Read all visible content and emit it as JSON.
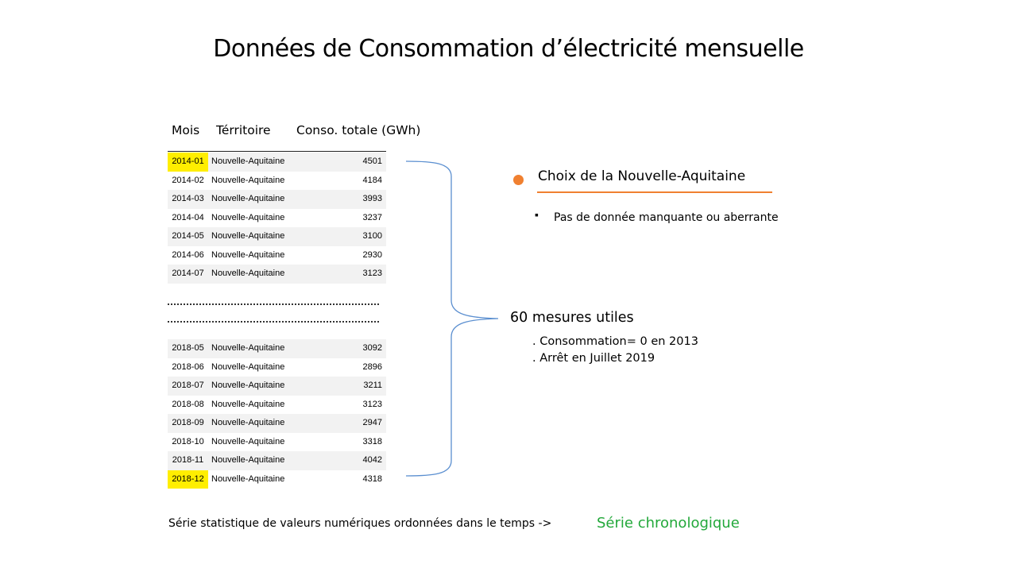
{
  "title": "Données de Consommation d’électricité mensuelle",
  "table": {
    "headers": {
      "mois": "Mois",
      "territoire": "Térritoire",
      "conso": "Conso. totale (GWh)"
    },
    "rows_top": [
      {
        "mois": "2014-01",
        "territoire": "Nouvelle-Aquitaine",
        "conso": "4501",
        "highlight": true
      },
      {
        "mois": "2014-02",
        "territoire": "Nouvelle-Aquitaine",
        "conso": "4184",
        "highlight": false
      },
      {
        "mois": "2014-03",
        "territoire": "Nouvelle-Aquitaine",
        "conso": "3993",
        "highlight": false
      },
      {
        "mois": "2014-04",
        "territoire": "Nouvelle-Aquitaine",
        "conso": "3237",
        "highlight": false
      },
      {
        "mois": "2014-05",
        "territoire": "Nouvelle-Aquitaine",
        "conso": "3100",
        "highlight": false
      },
      {
        "mois": "2014-06",
        "territoire": "Nouvelle-Aquitaine",
        "conso": "2930",
        "highlight": false
      },
      {
        "mois": "2014-07",
        "territoire": "Nouvelle-Aquitaine",
        "conso": "3123",
        "highlight": false
      }
    ],
    "rows_bottom": [
      {
        "mois": "2018-05",
        "territoire": "Nouvelle-Aquitaine",
        "conso": "3092",
        "highlight": false
      },
      {
        "mois": "2018-06",
        "territoire": "Nouvelle-Aquitaine",
        "conso": "2896",
        "highlight": false
      },
      {
        "mois": "2018-07",
        "territoire": "Nouvelle-Aquitaine",
        "conso": "3211",
        "highlight": false
      },
      {
        "mois": "2018-08",
        "territoire": "Nouvelle-Aquitaine",
        "conso": "3123",
        "highlight": false
      },
      {
        "mois": "2018-09",
        "territoire": "Nouvelle-Aquitaine",
        "conso": "2947",
        "highlight": false
      },
      {
        "mois": "2018-10",
        "territoire": "Nouvelle-Aquitaine",
        "conso": "3318",
        "highlight": false
      },
      {
        "mois": "2018-11",
        "territoire": "Nouvelle-Aquitaine",
        "conso": "4042",
        "highlight": false
      },
      {
        "mois": "2018-12",
        "territoire": "Nouvelle-Aquitaine",
        "conso": "4318",
        "highlight": true
      }
    ]
  },
  "choix": {
    "heading": "Choix de la Nouvelle-Aquitaine",
    "bullet_glyph": "▪",
    "point": "Pas de donnée manquante ou aberrante"
  },
  "mesures": {
    "heading": "60 mesures  utiles",
    "notes": [
      ". Consommation= 0 en 2013",
      ". Arrêt en Juillet 2019"
    ]
  },
  "footer": {
    "text": "Série statistique de valeurs numériques ordonnées dans le temps ->",
    "highlight": "Série chronologique"
  },
  "colors": {
    "accent_orange": "#f08030",
    "highlight_yellow": "#ffee00",
    "brace_blue": "#5b8fd0",
    "footer_green": "#22a83a"
  }
}
